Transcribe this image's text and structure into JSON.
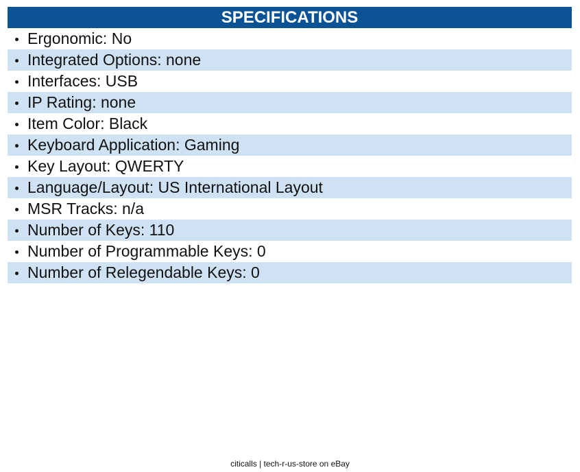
{
  "header": {
    "title": "SPECIFICATIONS"
  },
  "items": [
    "Ergonomic: No",
    "Integrated Options: none",
    "Interfaces: USB",
    "IP Rating: none",
    "Item Color: Black",
    "Keyboard Application: Gaming",
    "Key Layout: QWERTY",
    "Language/Layout: US International Layout",
    "MSR Tracks: n/a",
    "Number of Keys: 110",
    "Number of Programmable Keys: 0",
    "Number of Relegendable Keys: 0"
  ],
  "footer": {
    "text": "citicalls | tech-r-us-store on eBay"
  }
}
